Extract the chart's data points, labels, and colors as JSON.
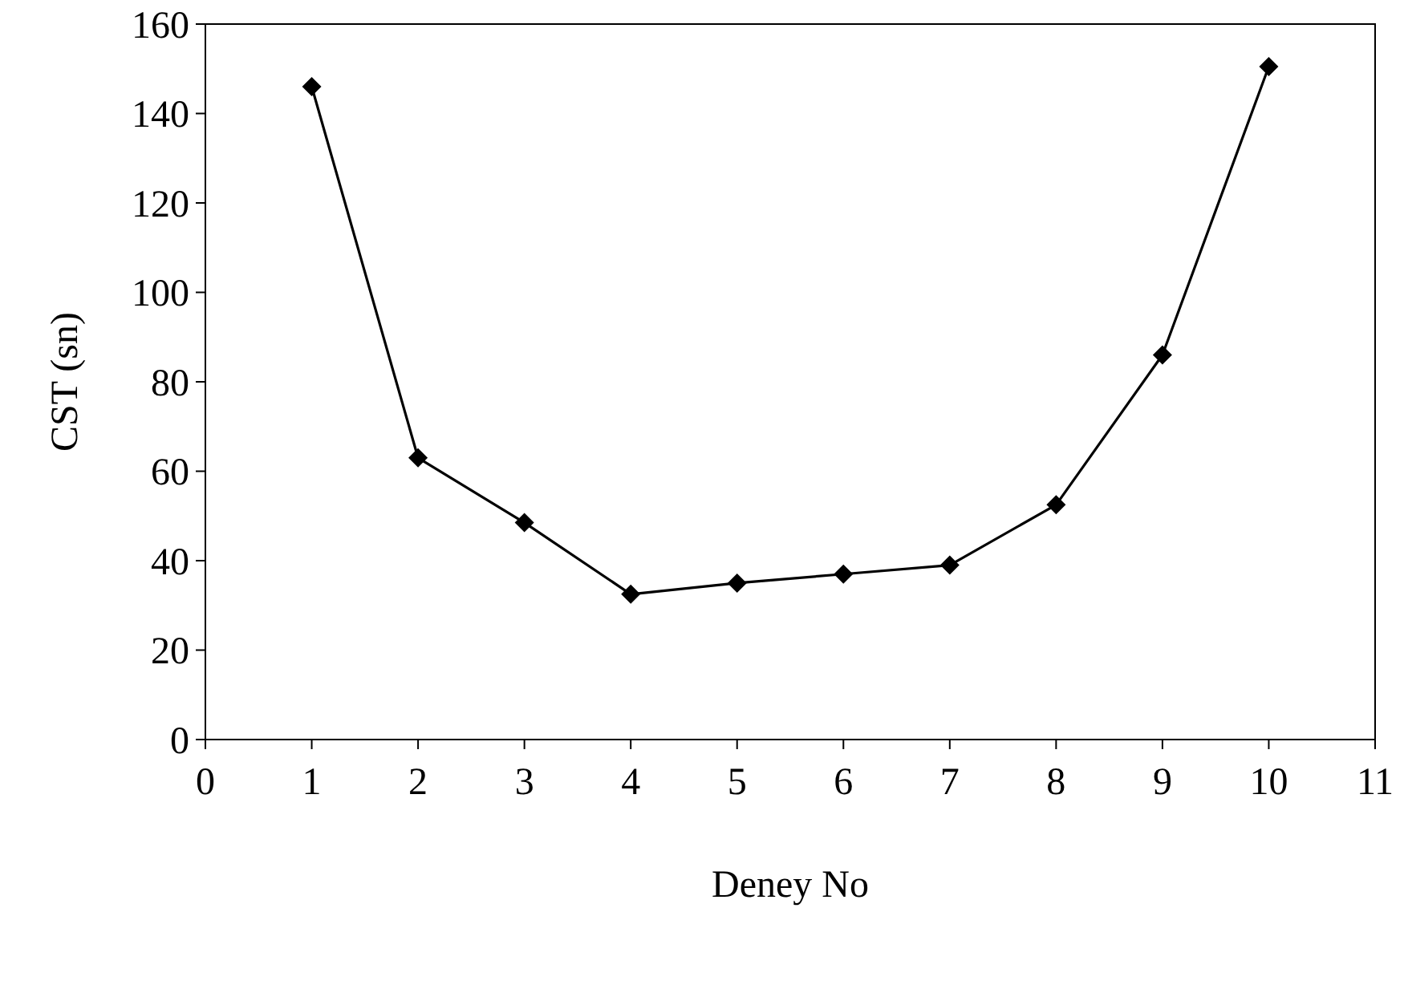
{
  "chart_data": {
    "type": "line",
    "xlabel": "Deney No",
    "ylabel": "CST (sn)",
    "x": [
      1,
      2,
      3,
      4,
      5,
      6,
      7,
      8,
      9,
      10
    ],
    "series": [
      {
        "color": "#000000",
        "values": [
          146,
          63,
          48.5,
          32.5,
          35,
          37,
          39,
          52.5,
          86,
          150.5
        ]
      }
    ],
    "xlim": [
      0,
      11
    ],
    "xticks": [
      0,
      1,
      2,
      3,
      4,
      5,
      6,
      7,
      8,
      9,
      10,
      11
    ],
    "ylim": [
      0,
      160
    ],
    "yticks": [
      0,
      20,
      40,
      60,
      80,
      100,
      120,
      140,
      160
    ],
    "marker": "diamond",
    "line_style": "solid"
  }
}
